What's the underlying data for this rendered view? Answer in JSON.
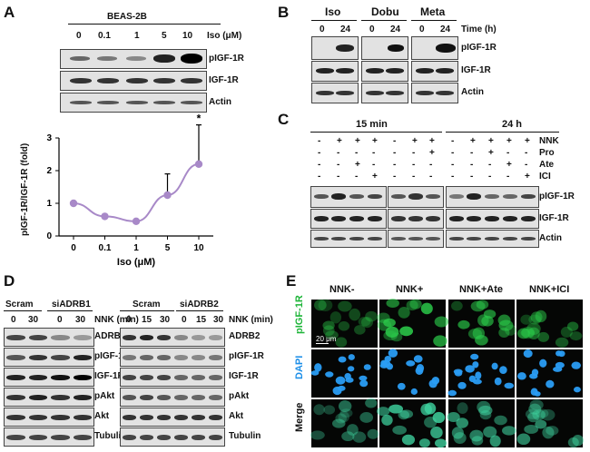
{
  "panels": {
    "A": "A",
    "B": "B",
    "C": "C",
    "D": "D",
    "E": "E"
  },
  "panelA": {
    "cell_line": "BEAS-2B",
    "doses": [
      "0",
      "0.1",
      "1",
      "5",
      "10"
    ],
    "dose_label": "Iso (μM)",
    "rows": [
      "pIGF-1R",
      "IGF-1R",
      "Actin"
    ]
  },
  "chart_data": {
    "type": "line",
    "x": [
      "0",
      "0.1",
      "1",
      "5",
      "10"
    ],
    "values": [
      1.0,
      0.6,
      0.45,
      1.25,
      2.2
    ],
    "errors_up": [
      0,
      0,
      0,
      0.65,
      1.2
    ],
    "ylabel": "pIGF-1R/IGF-1R (fold)",
    "xlabel": "Iso (μM)",
    "ylim": [
      0,
      3
    ],
    "yticks": [
      "0",
      "1",
      "2",
      "3"
    ],
    "significance": [
      "",
      "",
      "",
      "",
      "*"
    ],
    "color": "#a889c8"
  },
  "panelB": {
    "groups": [
      "Iso",
      "Dobu",
      "Meta"
    ],
    "times": [
      "0",
      "24",
      "0",
      "24",
      "0",
      "24"
    ],
    "time_label": "Time (h)",
    "rows": [
      "pIGF-1R",
      "IGF-1R",
      "Actin"
    ]
  },
  "panelC": {
    "time_groups": [
      "15 min",
      "24 h"
    ],
    "treatments": [
      {
        "name": "NNK",
        "signs": [
          "-",
          "+",
          "+",
          "+",
          "-",
          "+",
          "+",
          "-",
          "+",
          "+",
          "+",
          "+"
        ]
      },
      {
        "name": "Pro",
        "signs": [
          "-",
          "-",
          "-",
          "-",
          "-",
          "-",
          "+",
          "-",
          "-",
          "+",
          "-",
          "-"
        ]
      },
      {
        "name": "Ate",
        "signs": [
          "-",
          "-",
          "+",
          "-",
          "-",
          "-",
          "-",
          "-",
          "-",
          "-",
          "+",
          "-"
        ]
      },
      {
        "name": "ICI",
        "signs": [
          "-",
          "-",
          "-",
          "+",
          "-",
          "-",
          "-",
          "-",
          "-",
          "-",
          "-",
          "+"
        ]
      }
    ],
    "rows": [
      "pIGF-1R",
      "IGF-1R",
      "Actin"
    ]
  },
  "panelD": {
    "left": {
      "groups": [
        "Scram",
        "siADRB1"
      ],
      "times": [
        "0",
        "30",
        "0",
        "30"
      ],
      "time_label": "NNK (min)",
      "rows": [
        "ADRB1",
        "pIGF-1R",
        "IGF-1R",
        "pAkt",
        "Akt",
        "Tubulin"
      ]
    },
    "right": {
      "groups": [
        "Scram",
        "siADRB2"
      ],
      "times": [
        "0",
        "15",
        "30",
        "0",
        "15",
        "30"
      ],
      "time_label": "NNK (min)",
      "rows": [
        "ADRB2",
        "pIGF-1R",
        "IGF-1R",
        "pAkt",
        "Akt",
        "Tubulin"
      ]
    }
  },
  "panelE": {
    "columns": [
      "NNK-",
      "NNK+",
      "NNK+Ate",
      "NNK+ICI"
    ],
    "rows": [
      "pIGF-1R",
      "DAPI",
      "Merge"
    ],
    "scale_bar": "20 μm",
    "colors": {
      "pIGF-1R": "#2bcb4a",
      "DAPI": "#2a9df4",
      "Merge": "#3fd4a0"
    }
  }
}
